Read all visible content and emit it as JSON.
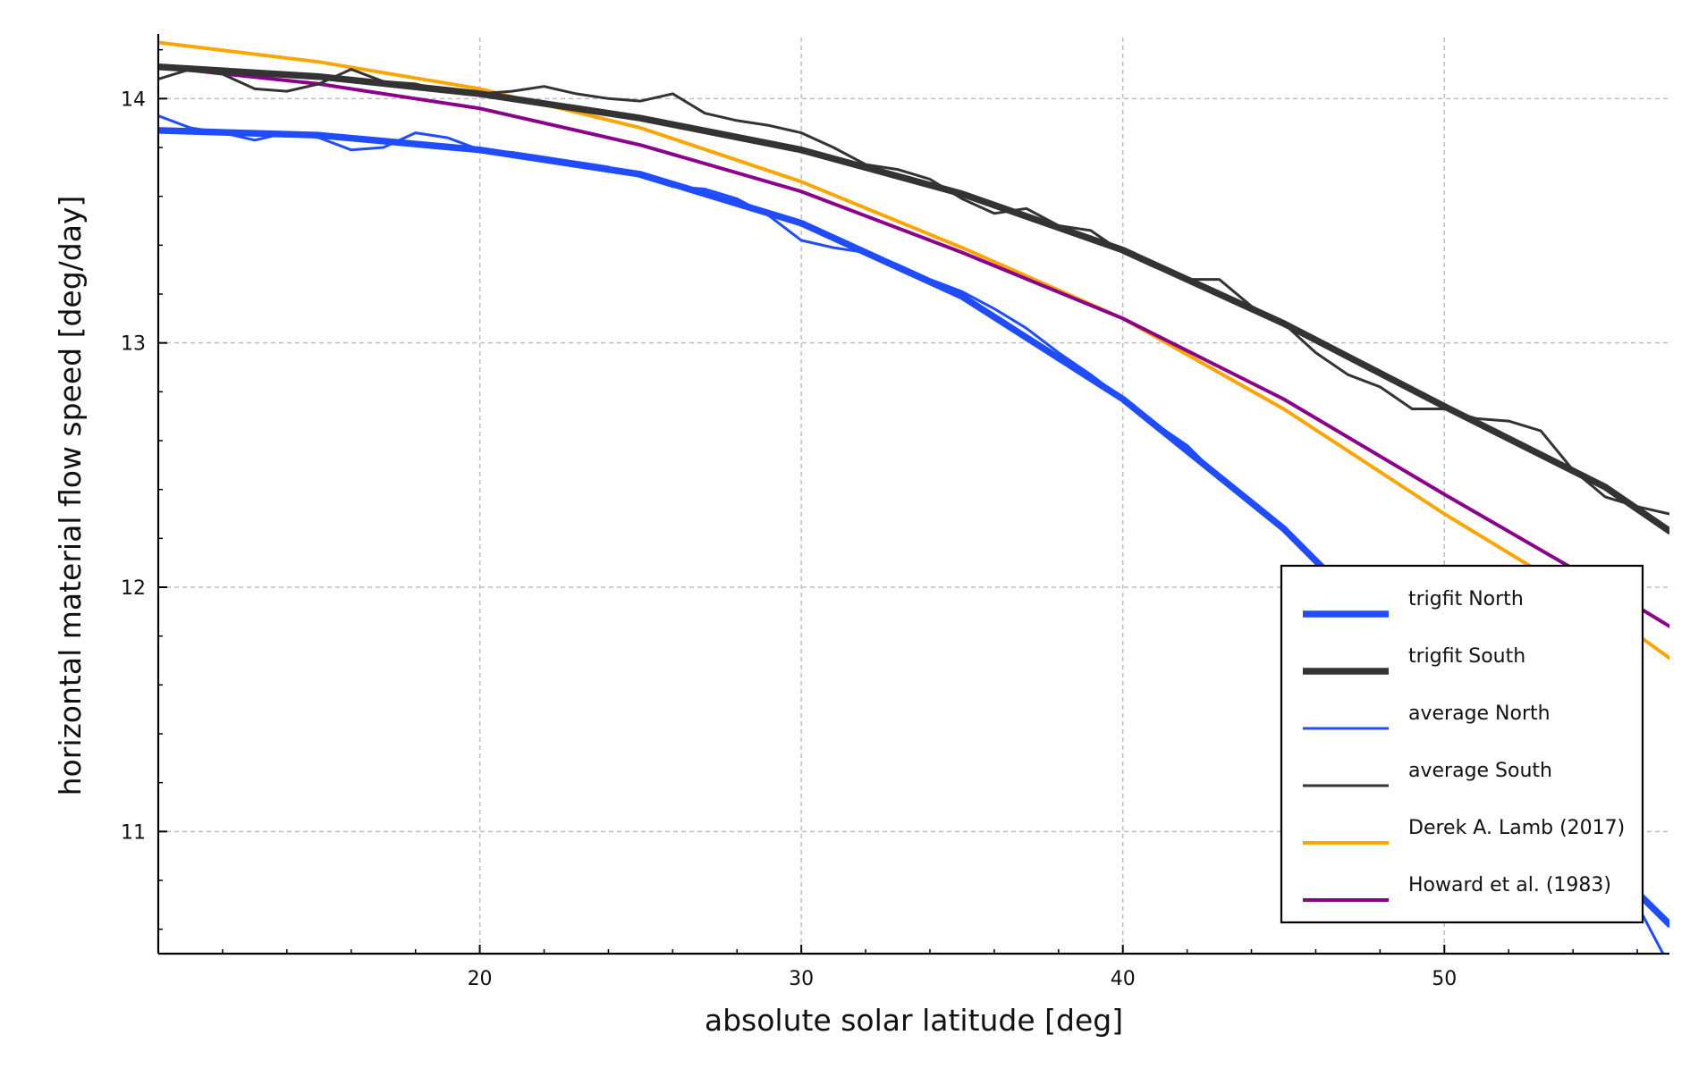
{
  "chart_data": {
    "type": "line",
    "title": "",
    "xlabel": "absolute solar latitude [deg]",
    "ylabel": "horizontal material flow speed [deg/day]",
    "xlim": [
      10,
      57
    ],
    "ylim": [
      10.5,
      14.25
    ],
    "xticks": [
      20,
      30,
      40,
      50
    ],
    "yticks": [
      11,
      12,
      13,
      14
    ],
    "x_minor_step": 2,
    "y_minor_step": 0.2,
    "grid": true,
    "legend_position": "bottom-right",
    "series": [
      {
        "name": "trigfit North",
        "style": "thick",
        "color": "#1f4cff",
        "x": [
          10,
          15,
          20,
          25,
          30,
          35,
          40,
          45,
          50,
          55,
          57
        ],
        "y": [
          13.87,
          13.85,
          13.79,
          13.69,
          13.49,
          13.19,
          12.77,
          12.24,
          11.58,
          10.88,
          10.62
        ]
      },
      {
        "name": "trigfit South",
        "style": "thick",
        "color": "#333333",
        "x": [
          10,
          15,
          20,
          25,
          30,
          35,
          40,
          45,
          50,
          55,
          57
        ],
        "y": [
          14.13,
          14.09,
          14.02,
          13.92,
          13.79,
          13.61,
          13.38,
          13.08,
          12.74,
          12.41,
          12.23
        ]
      },
      {
        "name": "average North",
        "style": "thin",
        "color": "#1f4cff",
        "x": [
          10,
          11,
          12,
          13,
          14,
          15,
          16,
          17,
          18,
          19,
          20,
          21,
          22,
          23,
          24,
          25,
          26,
          27,
          28,
          29,
          30,
          31,
          32,
          33,
          34,
          35,
          36,
          37,
          38,
          39,
          40,
          41,
          42,
          43,
          44,
          45,
          46,
          47,
          48,
          49,
          50,
          51,
          52,
          53,
          54,
          55,
          56,
          57
        ],
        "y": [
          13.93,
          13.88,
          13.86,
          13.83,
          13.86,
          13.84,
          13.79,
          13.8,
          13.86,
          13.84,
          13.79,
          13.78,
          13.76,
          13.74,
          13.72,
          13.68,
          13.64,
          13.63,
          13.59,
          13.52,
          13.42,
          13.39,
          13.37,
          13.32,
          13.26,
          13.21,
          13.14,
          13.06,
          12.96,
          12.87,
          12.77,
          12.67,
          12.58,
          12.45,
          12.34,
          12.23,
          12.11,
          11.97,
          11.84,
          11.7,
          11.57,
          11.43,
          11.29,
          11.15,
          11.0,
          10.86,
          10.7,
          10.45
        ]
      },
      {
        "name": "average South",
        "style": "thin",
        "color": "#333333",
        "x": [
          10,
          11,
          12,
          13,
          14,
          15,
          16,
          17,
          18,
          19,
          20,
          21,
          22,
          23,
          24,
          25,
          26,
          27,
          28,
          29,
          30,
          31,
          32,
          33,
          34,
          35,
          36,
          37,
          38,
          39,
          40,
          41,
          42,
          43,
          44,
          45,
          46,
          47,
          48,
          49,
          50,
          51,
          52,
          53,
          54,
          55,
          56,
          57
        ],
        "y": [
          14.08,
          14.12,
          14.1,
          14.04,
          14.03,
          14.06,
          14.12,
          14.07,
          14.06,
          14.03,
          14.02,
          14.03,
          14.05,
          14.02,
          14.0,
          13.99,
          14.02,
          13.94,
          13.91,
          13.89,
          13.86,
          13.8,
          13.73,
          13.71,
          13.67,
          13.59,
          13.53,
          13.55,
          13.48,
          13.46,
          13.37,
          13.31,
          13.26,
          13.26,
          13.15,
          13.08,
          12.96,
          12.87,
          12.82,
          12.73,
          12.73,
          12.69,
          12.68,
          12.64,
          12.48,
          12.37,
          12.33,
          12.3
        ]
      },
      {
        "name": "Derek A. Lamb (2017)",
        "style": "medium",
        "color": "#ffa500",
        "x": [
          10,
          15,
          20,
          25,
          30,
          35,
          40,
          45,
          50,
          55,
          57
        ],
        "y": [
          14.23,
          14.15,
          14.04,
          13.88,
          13.66,
          13.39,
          13.1,
          12.73,
          12.3,
          11.9,
          11.71
        ]
      },
      {
        "name": "Howard et al. (1983)",
        "style": "medium",
        "color": "#8b008b",
        "x": [
          10,
          15,
          20,
          25,
          30,
          35,
          40,
          45,
          50,
          55,
          57
        ],
        "y": [
          14.13,
          14.06,
          13.96,
          13.81,
          13.62,
          13.37,
          13.1,
          12.77,
          12.38,
          12.0,
          11.84
        ]
      }
    ]
  }
}
